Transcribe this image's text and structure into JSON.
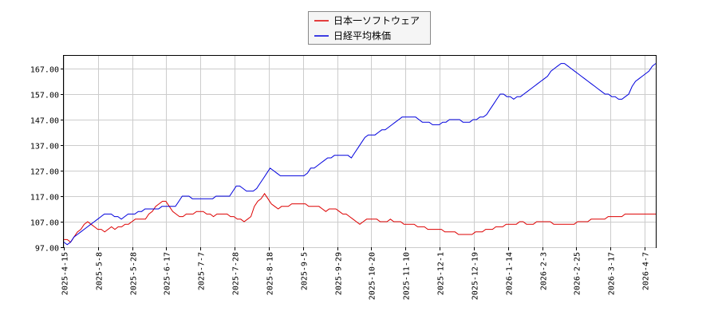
{
  "chart_data": {
    "type": "line",
    "grid": true,
    "legend_position": "top-center",
    "x_ticks": [
      "2025-4-15",
      "2025-5-8",
      "2025-5-28",
      "2025-6-17",
      "2025-7-7",
      "2025-7-28",
      "2025-8-18",
      "2025-9-5",
      "2025-9-29",
      "2025-10-20",
      "2025-11-10",
      "2025-12-1",
      "2025-12-19",
      "2026-1-14",
      "2026-2-3",
      "2026-2-25",
      "2026-3-17",
      "2026-4-7"
    ],
    "y_ticks": [
      "97.00",
      "107.00",
      "117.00",
      "127.00",
      "137.00",
      "147.00",
      "157.00",
      "167.00"
    ],
    "ylim": [
      97,
      172
    ],
    "series": [
      {
        "name": "日本一ソフトウェア",
        "color": "#dd0000",
        "values": [
          100,
          100,
          99,
          101,
          103,
          104,
          106,
          107,
          106,
          105,
          104,
          104,
          103,
          104,
          105,
          104,
          105,
          105,
          106,
          106,
          107,
          108,
          108,
          108,
          108,
          110,
          111,
          113,
          114,
          115,
          115,
          113,
          111,
          110,
          109,
          109,
          110,
          110,
          110,
          111,
          111,
          111,
          110,
          110,
          109,
          110,
          110,
          110,
          110,
          109,
          109,
          108,
          108,
          107,
          108,
          109,
          113,
          115,
          116,
          118,
          116,
          114,
          113,
          112,
          113,
          113,
          113,
          114,
          114,
          114,
          114,
          114,
          113,
          113,
          113,
          113,
          112,
          111,
          112,
          112,
          112,
          111,
          110,
          110,
          109,
          108,
          107,
          106,
          107,
          108,
          108,
          108,
          108,
          107,
          107,
          107,
          108,
          107,
          107,
          107,
          106,
          106,
          106,
          106,
          105,
          105,
          105,
          104,
          104,
          104,
          104,
          104,
          103,
          103,
          103,
          103,
          102,
          102,
          102,
          102,
          102,
          103,
          103,
          103,
          104,
          104,
          104,
          105,
          105,
          105,
          106,
          106,
          106,
          106,
          107,
          107,
          106,
          106,
          106,
          107,
          107,
          107,
          107,
          107,
          106,
          106,
          106,
          106,
          106,
          106,
          106,
          107,
          107,
          107,
          107,
          108,
          108,
          108,
          108,
          108,
          109,
          109,
          109,
          109,
          109,
          110,
          110,
          110,
          110,
          110,
          110,
          110,
          110,
          110,
          110
        ]
      },
      {
        "name": "日経平均株価",
        "color": "#0000dd",
        "values": [
          99,
          98,
          99,
          101,
          102,
          103,
          104,
          105,
          106,
          107,
          108,
          109,
          110,
          110,
          110,
          109,
          109,
          108,
          109,
          110,
          110,
          110,
          111,
          111,
          112,
          112,
          112,
          112,
          112,
          113,
          113,
          113,
          113,
          113,
          115,
          117,
          117,
          117,
          116,
          116,
          116,
          116,
          116,
          116,
          116,
          117,
          117,
          117,
          117,
          117,
          119,
          121,
          121,
          120,
          119,
          119,
          119,
          120,
          122,
          124,
          126,
          128,
          127,
          126,
          125,
          125,
          125,
          125,
          125,
          125,
          125,
          125,
          126,
          128,
          128,
          129,
          130,
          131,
          132,
          132,
          133,
          133,
          133,
          133,
          133,
          132,
          134,
          136,
          138,
          140,
          141,
          141,
          141,
          142,
          143,
          143,
          144,
          145,
          146,
          147,
          148,
          148,
          148,
          148,
          148,
          147,
          146,
          146,
          146,
          145,
          145,
          145,
          146,
          146,
          147,
          147,
          147,
          147,
          146,
          146,
          146,
          147,
          147,
          148,
          148,
          149,
          151,
          153,
          155,
          157,
          157,
          156,
          156,
          155,
          156,
          156,
          157,
          158,
          159,
          160,
          161,
          162,
          163,
          164,
          166,
          167,
          168,
          169,
          169,
          168,
          167,
          166,
          165,
          164,
          163,
          162,
          161,
          160,
          159,
          158,
          157,
          157,
          156,
          156,
          155,
          155,
          156,
          157,
          160,
          162,
          163,
          164,
          165,
          166,
          168,
          169
        ]
      }
    ]
  }
}
